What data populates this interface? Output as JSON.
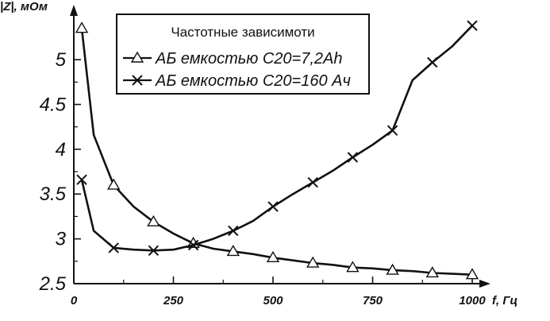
{
  "chart_data": {
    "type": "line",
    "title": "",
    "xlabel": "f, Гц",
    "ylabel": "|Z|, мОм",
    "xlim": [
      0,
      1000
    ],
    "ylim": [
      2.5,
      5.4
    ],
    "x_ticks": [
      0,
      250,
      500,
      750,
      1000
    ],
    "x_tick_labels": [
      "0",
      "250",
      "500",
      "750",
      "1000"
    ],
    "y_ticks": [
      2.5,
      3,
      3.5,
      4,
      4.5,
      5
    ],
    "y_tick_labels": [
      "2.5",
      "3",
      "3.5",
      "4",
      "4.5",
      "5"
    ],
    "grid": false,
    "legend": {
      "title": "Частотные зависимоти",
      "placement": "top-center"
    },
    "series": [
      {
        "name": "АБ емкостью С20=7,2Ah",
        "marker": "triangle",
        "color": "#111111",
        "x": [
          20,
          50,
          100,
          150,
          200,
          250,
          300,
          350,
          400,
          450,
          500,
          550,
          600,
          650,
          700,
          750,
          800,
          850,
          900,
          950,
          1000
        ],
        "y": [
          5.35,
          4.16,
          3.6,
          3.36,
          3.19,
          3.06,
          2.95,
          2.89,
          2.86,
          2.83,
          2.79,
          2.76,
          2.73,
          2.71,
          2.68,
          2.67,
          2.65,
          2.64,
          2.62,
          2.61,
          2.6
        ],
        "marker_x": [
          20,
          100,
          200,
          300,
          400,
          500,
          600,
          700,
          800,
          900,
          1000
        ]
      },
      {
        "name": "АБ емкостью С20=160 Ач",
        "marker": "x",
        "color": "#111111",
        "x": [
          20,
          50,
          100,
          150,
          200,
          250,
          300,
          350,
          400,
          450,
          500,
          550,
          600,
          650,
          700,
          750,
          800,
          850,
          900,
          950,
          1000
        ],
        "y": [
          3.66,
          3.09,
          2.9,
          2.88,
          2.87,
          2.88,
          2.93,
          3.0,
          3.09,
          3.2,
          3.36,
          3.5,
          3.63,
          3.76,
          3.91,
          4.05,
          4.21,
          4.77,
          4.97,
          5.15,
          5.38
        ],
        "marker_x": [
          20,
          100,
          200,
          300,
          400,
          500,
          600,
          700,
          800,
          900,
          1000
        ]
      }
    ]
  }
}
